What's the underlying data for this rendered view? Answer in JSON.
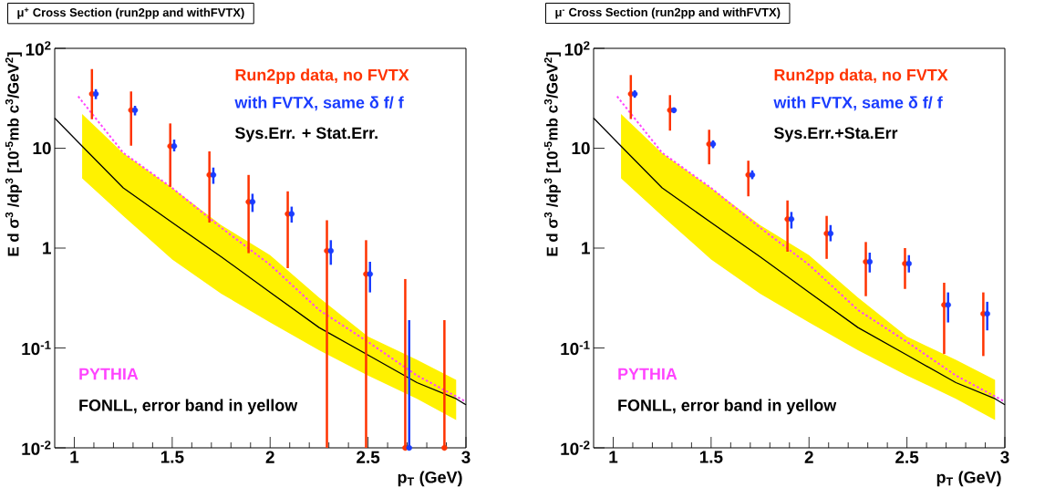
{
  "chart_data": [
    {
      "type": "scatter",
      "title": "μ$^{+}$ Cross Section (run2pp and withFVTX)",
      "xlabel": "p$_{T}$ (GeV)",
      "ylabel": "E d σ$^{3}$ /dp$^{3}$ [10$^{-5}$mb c$^{3}$/GeV$^{2}$]",
      "log": "y",
      "xlim": [
        0.9,
        3
      ],
      "ylim": [
        0.01,
        100
      ],
      "xticks": [
        1,
        1.5,
        2,
        2.5,
        3
      ],
      "yticks": [
        {
          "value": 0.01,
          "label": "10$^{-2}$"
        },
        {
          "value": 0.1,
          "label": "10$^{-1}$"
        },
        1,
        10,
        {
          "value": 100,
          "label": "10$^{2}$"
        }
      ],
      "annotations": [
        "Sys.Err. + Stat.Err."
      ],
      "series": [
        {
          "type": "scatter",
          "name": "Run2pp data, no FVTX",
          "color": "#ff3300",
          "marker": "circle",
          "x": [
            1.09,
            1.29,
            1.49,
            1.69,
            1.89,
            2.09,
            2.29,
            2.49,
            2.69,
            2.89
          ],
          "values": [
            35,
            24,
            10.5,
            5.4,
            2.9,
            2.2,
            0.94,
            0.55,
            0.01,
            0.01
          ],
          "errors": [
            [
              19.5,
              62
            ],
            [
              10.6,
              37
            ],
            [
              4.1,
              17.7
            ],
            [
              1.8,
              9.3
            ],
            [
              0.89,
              5.4
            ],
            [
              0.63,
              3.7
            ],
            [
              0.01,
              1.9
            ],
            [
              0.01,
              1.2
            ],
            [
              0.01,
              0.49
            ],
            [
              0.01,
              0.19
            ]
          ]
        },
        {
          "type": "scatter",
          "name": "with FVTX, same δ f/ f",
          "color": "#1a3cff",
          "marker": "circle",
          "x": [
            1.11,
            1.31,
            1.51,
            1.71,
            1.91,
            2.11,
            2.31,
            2.51,
            2.71
          ],
          "values": [
            35,
            24,
            10.5,
            5.4,
            2.9,
            2.2,
            0.94,
            0.55,
            0.01
          ],
          "errors": [
            [
              31,
              39
            ],
            [
              21.3,
              26.6
            ],
            [
              9.3,
              12.2
            ],
            [
              4.4,
              6.4
            ],
            [
              2.3,
              3.5
            ],
            [
              1.8,
              2.6
            ],
            [
              0.68,
              1.2
            ],
            [
              0.36,
              0.73
            ],
            [
              0.01,
              0.19
            ]
          ]
        },
        {
          "type": "line",
          "name": "PYTHIA",
          "color": "#ff44ff",
          "line_style": "dotted",
          "marker": "none",
          "x": [
            1.02,
            1.25,
            1.5,
            1.75,
            2.0,
            2.25,
            2.5,
            2.75,
            3.0
          ],
          "values": [
            33,
            9,
            4.0,
            1.6,
            0.68,
            0.24,
            0.115,
            0.053,
            0.029
          ]
        },
        {
          "type": "line",
          "name": "FONLL, error band in yellow",
          "color": "#000000",
          "line_style": "solid",
          "marker": "none",
          "x": [
            0.9,
            1.04,
            1.25,
            1.5,
            1.75,
            2.0,
            2.25,
            2.5,
            2.75,
            2.95,
            3.0
          ],
          "values": [
            20,
            10.5,
            4.0,
            1.8,
            0.82,
            0.36,
            0.16,
            0.085,
            0.045,
            0.031,
            0.027
          ],
          "lower": [
            null,
            5,
            2.1,
            0.77,
            0.35,
            0.18,
            0.095,
            0.053,
            0.031,
            0.019,
            null
          ],
          "upper": [
            null,
            22,
            8.9,
            4,
            1.7,
            0.85,
            0.32,
            0.13,
            0.076,
            0.048,
            null
          ]
        }
      ]
    },
    {
      "type": "scatter",
      "title": "μ$^{-}$ Cross Section (run2pp and withFVTX)",
      "xlabel": "p$_{T}$ (GeV)",
      "ylabel": "E d σ$^{3}$ /dp$^{3}$ [10$^{-5}$mb c$^{3}$/GeV$^{2}$]",
      "log": "y",
      "xlim": [
        0.9,
        3
      ],
      "ylim": [
        0.01,
        100
      ],
      "xticks": [
        1,
        1.5,
        2,
        2.5,
        3
      ],
      "yticks": [
        {
          "value": 0.01,
          "label": "10$^{-2}$"
        },
        {
          "value": 0.1,
          "label": "10$^{-1}$"
        },
        1,
        10,
        {
          "value": 100,
          "label": "10$^{2}$"
        }
      ],
      "annotations": [
        "Sys.Err.+Sta.Err"
      ],
      "series": [
        {
          "type": "scatter",
          "name": "Run2pp data, no FVTX",
          "color": "#ff3300",
          "marker": "circle",
          "x": [
            1.09,
            1.29,
            1.49,
            1.69,
            1.89,
            2.09,
            2.29,
            2.49,
            2.69,
            2.89
          ],
          "values": [
            35,
            24,
            11,
            5.4,
            1.95,
            1.4,
            0.73,
            0.7,
            0.27,
            0.22
          ],
          "errors": [
            [
              19.6,
              54
            ],
            [
              15,
              34
            ],
            [
              6.9,
              15.3
            ],
            [
              3.3,
              7.5
            ],
            [
              0.92,
              3.0
            ],
            [
              0.78,
              2.1
            ],
            [
              0.33,
              1.15
            ],
            [
              0.39,
              1.0
            ],
            [
              0.087,
              0.45
            ],
            [
              0.083,
              0.36
            ]
          ]
        },
        {
          "type": "scatter",
          "name": "with FVTX, same δ f/ f",
          "color": "#1a3cff",
          "marker": "circle",
          "x": [
            1.11,
            1.31,
            1.51,
            1.71,
            1.91,
            2.11,
            2.31,
            2.51,
            2.71,
            2.91
          ],
          "values": [
            35,
            24,
            11,
            5.4,
            1.95,
            1.4,
            0.73,
            0.7,
            0.27,
            0.22
          ],
          "errors": [
            [
              32,
              38
            ],
            [
              22.5,
              25.5
            ],
            [
              10,
              12
            ],
            [
              4.9,
              6
            ],
            [
              1.57,
              2.3
            ],
            [
              1.17,
              1.7
            ],
            [
              0.57,
              0.9
            ],
            [
              0.57,
              0.85
            ],
            [
              0.18,
              0.36
            ],
            [
              0.15,
              0.29
            ]
          ]
        },
        {
          "type": "line",
          "name": "PYTHIA",
          "color": "#ff44ff",
          "line_style": "dotted",
          "marker": "none",
          "x": [
            1.02,
            1.25,
            1.5,
            1.75,
            2.0,
            2.25,
            2.5,
            2.75,
            3.0
          ],
          "values": [
            33,
            9,
            4.0,
            1.6,
            0.68,
            0.24,
            0.115,
            0.053,
            0.029
          ]
        },
        {
          "type": "line",
          "name": "FONLL, error band in yellow",
          "color": "#000000",
          "line_style": "solid",
          "marker": "none",
          "x": [
            0.9,
            1.04,
            1.25,
            1.5,
            1.75,
            2.0,
            2.25,
            2.5,
            2.75,
            2.95,
            3.0
          ],
          "values": [
            20,
            10.5,
            4.0,
            1.8,
            0.82,
            0.36,
            0.16,
            0.085,
            0.045,
            0.031,
            0.027
          ],
          "lower": [
            null,
            5,
            2.1,
            0.77,
            0.35,
            0.18,
            0.095,
            0.053,
            0.031,
            0.019,
            null
          ],
          "upper": [
            null,
            22,
            8.9,
            4,
            1.7,
            0.85,
            0.32,
            0.13,
            0.076,
            0.048,
            null
          ]
        }
      ]
    }
  ]
}
